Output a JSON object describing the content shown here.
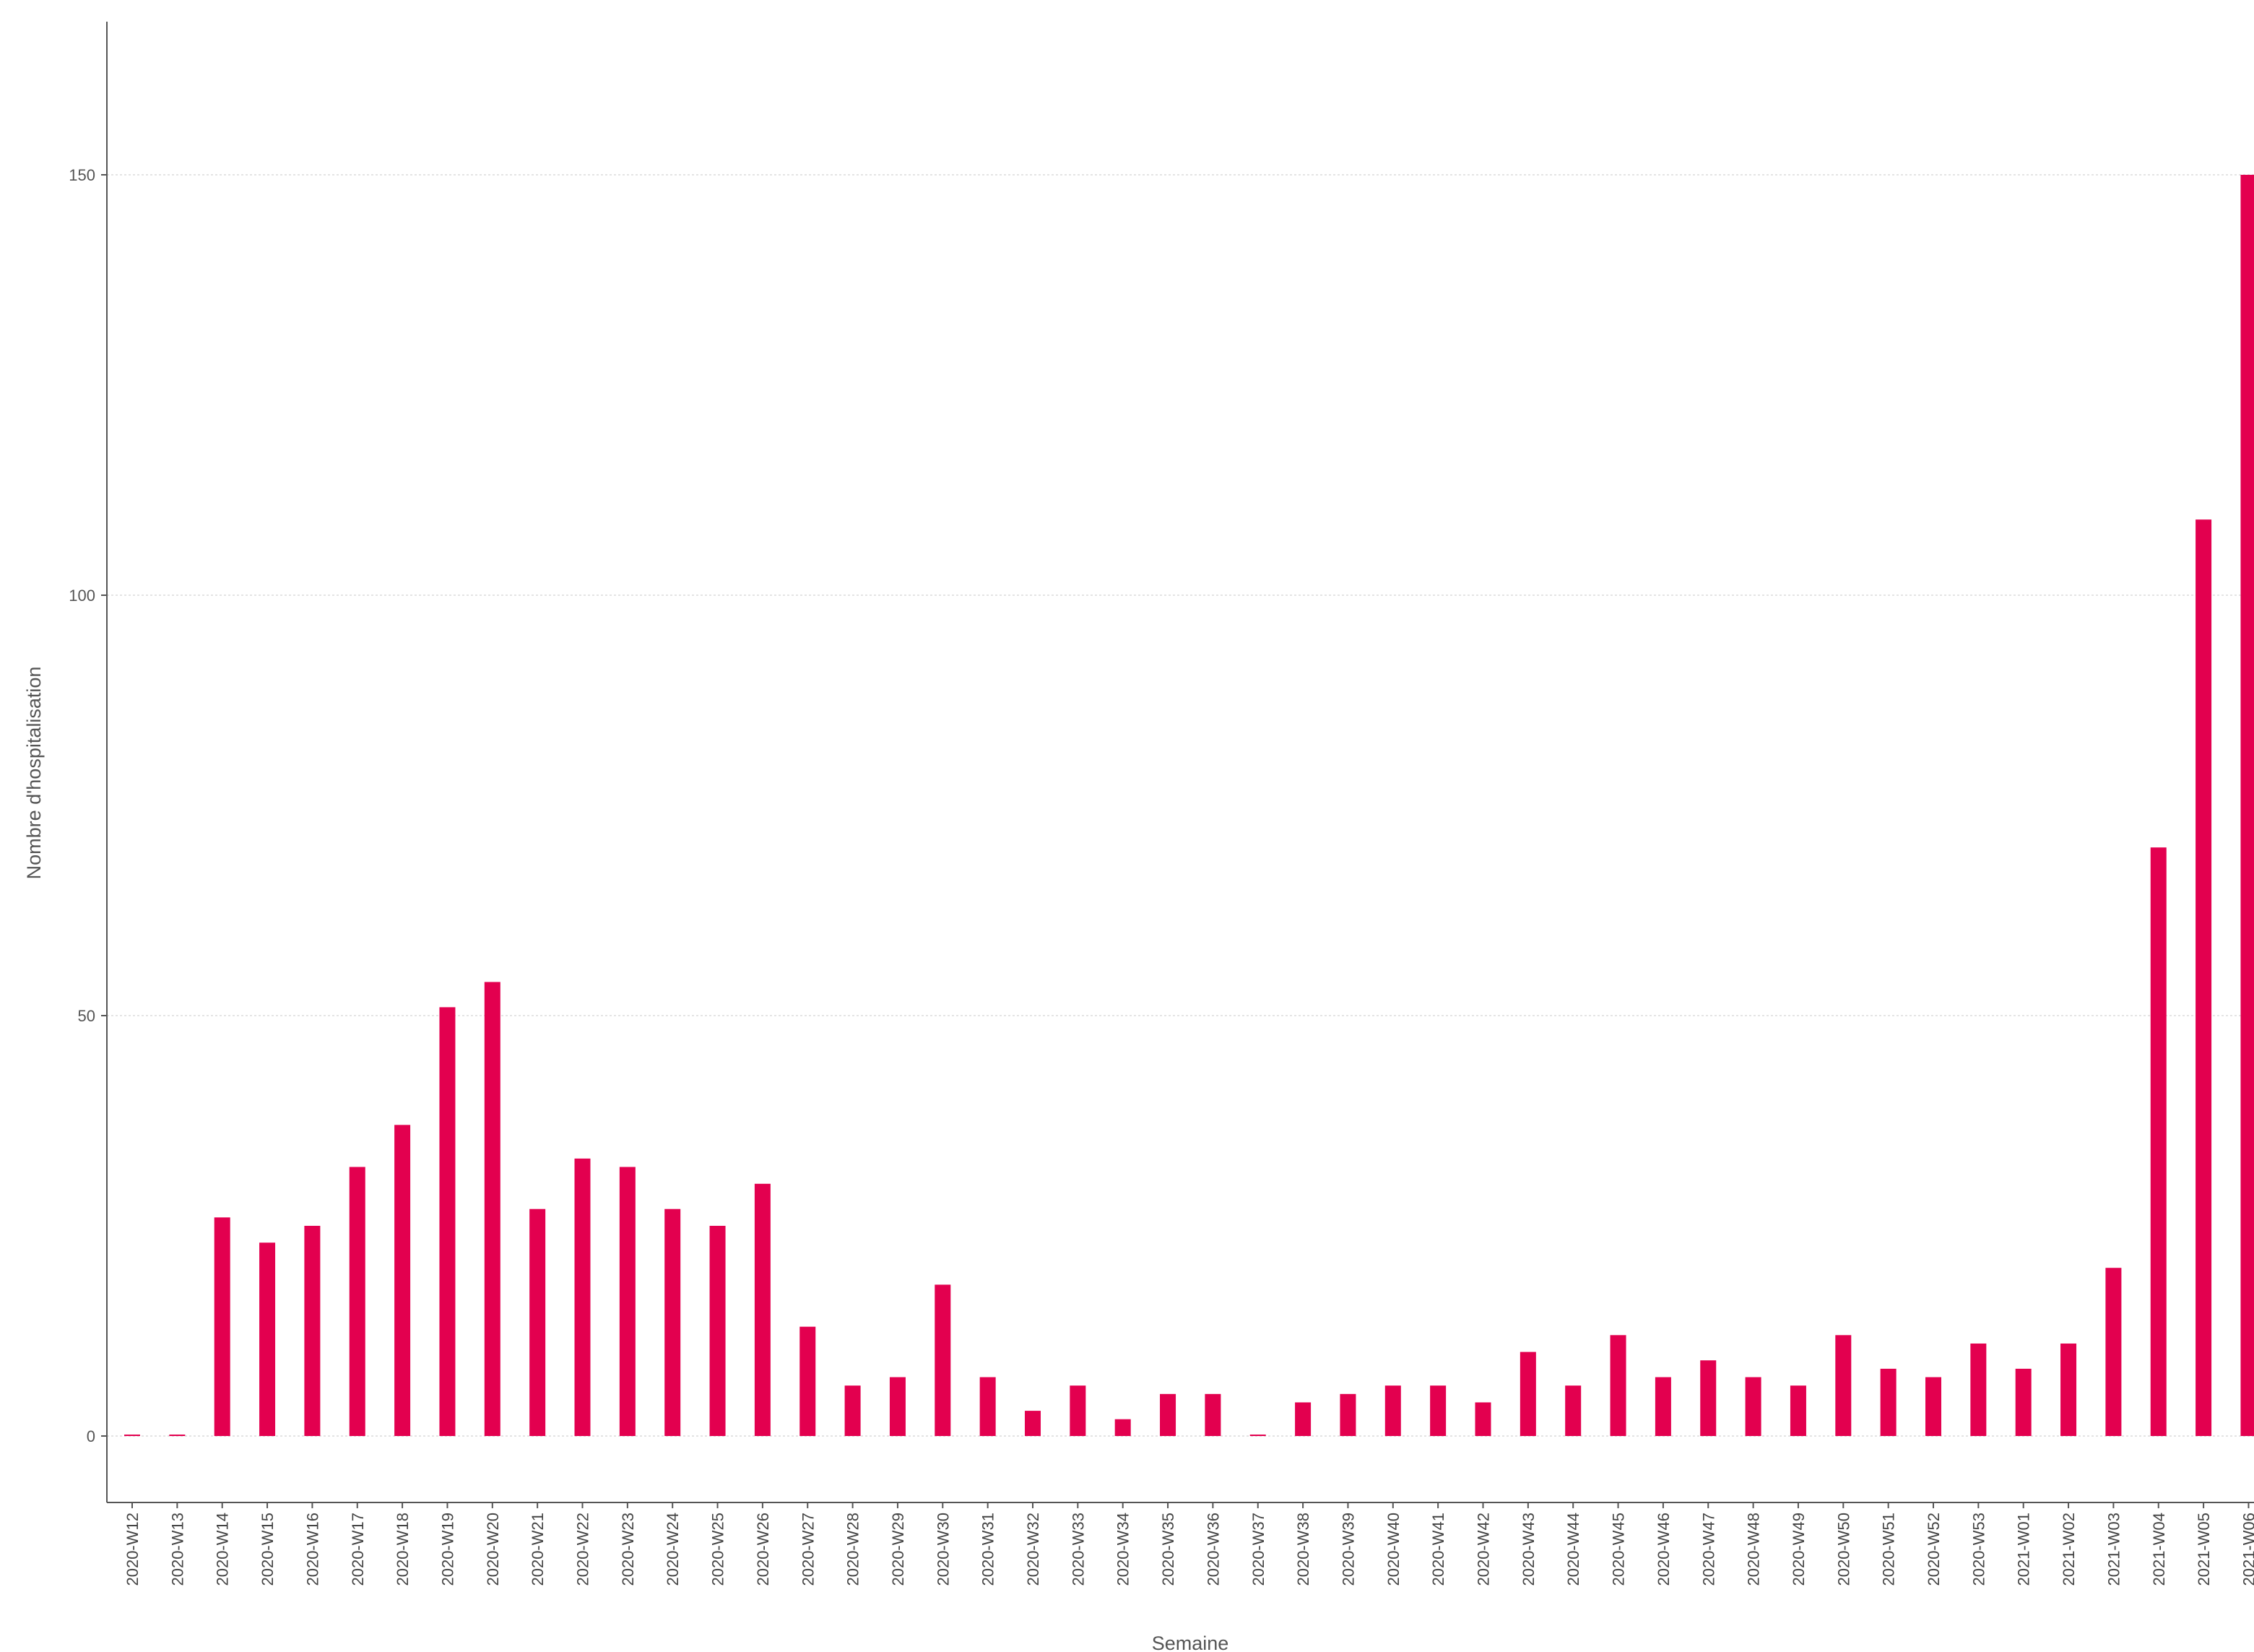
{
  "chart_data": {
    "type": "bar",
    "title": "",
    "xlabel": "Semaine",
    "ylabel": "Nombre d'hospitalisation",
    "ylim": [
      -8,
      168
    ],
    "yticks": [
      0,
      50,
      100,
      150
    ],
    "grid": true,
    "bar_color": "#e3004f",
    "categories": [
      "2020-W12",
      "2020-W13",
      "2020-W14",
      "2020-W15",
      "2020-W16",
      "2020-W17",
      "2020-W18",
      "2020-W19",
      "2020-W20",
      "2020-W21",
      "2020-W22",
      "2020-W23",
      "2020-W24",
      "2020-W25",
      "2020-W26",
      "2020-W27",
      "2020-W28",
      "2020-W29",
      "2020-W30",
      "2020-W31",
      "2020-W32",
      "2020-W33",
      "2020-W34",
      "2020-W35",
      "2020-W36",
      "2020-W37",
      "2020-W38",
      "2020-W39",
      "2020-W40",
      "2020-W41",
      "2020-W42",
      "2020-W43",
      "2020-W44",
      "2020-W45",
      "2020-W46",
      "2020-W47",
      "2020-W48",
      "2020-W49",
      "2020-W50",
      "2020-W51",
      "2020-W52",
      "2020-W53",
      "2021-W01",
      "2021-W02",
      "2021-W03",
      "2021-W04",
      "2021-W05",
      "2021-W06"
    ],
    "values": [
      0,
      0,
      26,
      23,
      25,
      32,
      37,
      51,
      54,
      27,
      33,
      32,
      27,
      25,
      30,
      13,
      6,
      7,
      18,
      7,
      3,
      6,
      2,
      5,
      5,
      0,
      4,
      5,
      6,
      6,
      4,
      10,
      6,
      12,
      7,
      9,
      7,
      6,
      12,
      8,
      7,
      11,
      8,
      11,
      20,
      70,
      109,
      150
    ]
  }
}
